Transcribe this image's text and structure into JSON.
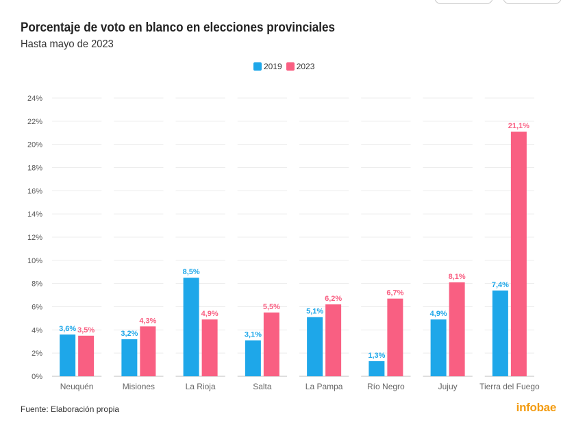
{
  "header": {
    "title": "Porcentaje de voto en blanco en elecciones provinciales",
    "subtitle": "Hasta mayo de 2023"
  },
  "legend": {
    "items": [
      {
        "label": "2019",
        "color": "#1ea7e9"
      },
      {
        "label": "2023",
        "color": "#f95f82"
      }
    ]
  },
  "chart_data": {
    "type": "bar",
    "title": "Porcentaje de voto en blanco en elecciones provinciales",
    "subtitle": "Hasta mayo de 2023",
    "categories": [
      "Neuquén",
      "Misiones",
      "La Rioja",
      "Salta",
      "La Pampa",
      "Río Negro",
      "Jujuy",
      "Tierra del Fuego"
    ],
    "series": [
      {
        "name": "2019",
        "color": "#1ea7e9",
        "values": [
          3.6,
          3.2,
          8.5,
          3.1,
          5.1,
          1.3,
          4.9,
          7.4
        ],
        "labels": [
          "3,6%",
          "3,2%",
          "8,5%",
          "3,1%",
          "5,1%",
          "1,3%",
          "4,9%",
          "7,4%"
        ]
      },
      {
        "name": "2023",
        "color": "#f95f82",
        "values": [
          3.5,
          4.3,
          4.9,
          5.5,
          6.2,
          6.7,
          8.1,
          21.1
        ],
        "labels": [
          "3,5%",
          "4,3%",
          "4,9%",
          "5,5%",
          "6,2%",
          "6,7%",
          "8,1%",
          "21,1%"
        ]
      }
    ],
    "ylim": [
      0,
      24
    ],
    "yticks": [
      0,
      2,
      4,
      6,
      8,
      10,
      12,
      14,
      16,
      18,
      20,
      22,
      24
    ],
    "ytick_labels": [
      "0%",
      "2%",
      "4%",
      "6%",
      "8%",
      "10%",
      "12%",
      "14%",
      "16%",
      "18%",
      "20%",
      "22%",
      "24%"
    ],
    "grid": true,
    "legend_position": "top-center",
    "xlabel": "",
    "ylabel": ""
  },
  "footer": {
    "source": "Fuente: Elaboración propia",
    "logo": "infobae"
  }
}
